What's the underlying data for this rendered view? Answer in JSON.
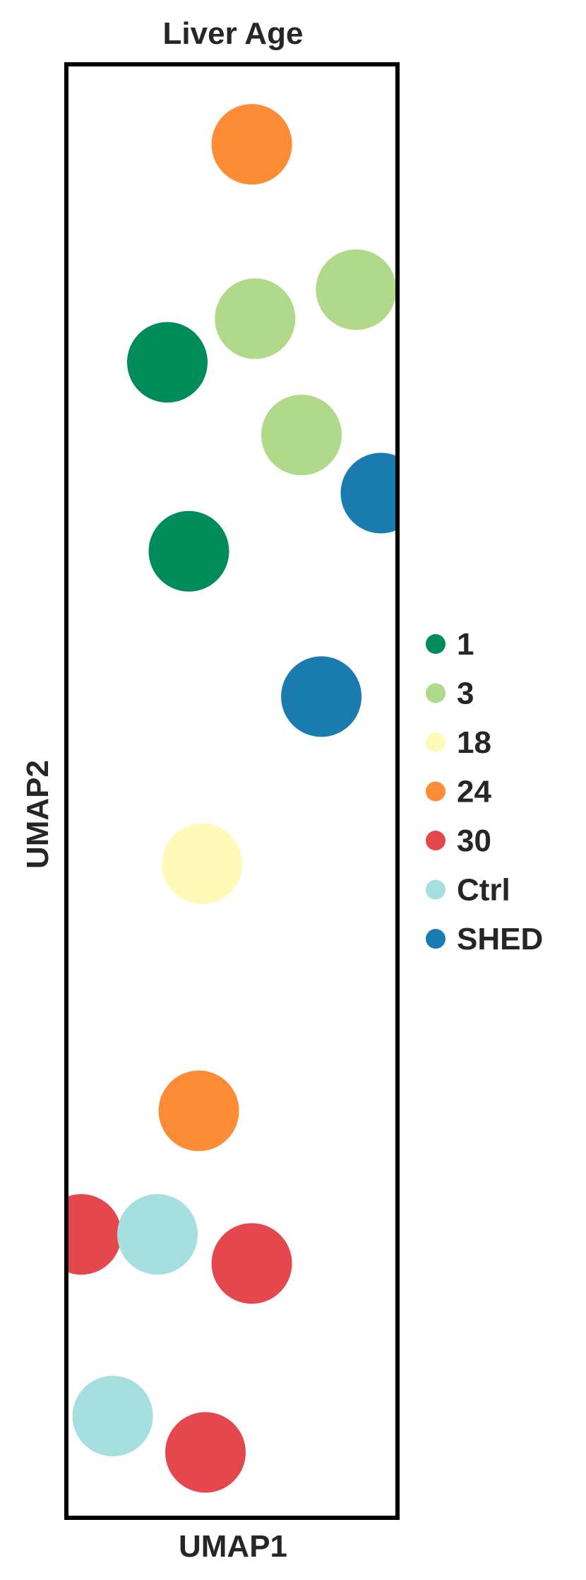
{
  "chart_data": {
    "type": "scatter",
    "title": "Liver Age",
    "xlabel": "UMAP1",
    "ylabel": "UMAP2",
    "xlim": [
      0,
      100
    ],
    "ylim": [
      0,
      100
    ],
    "grid": false,
    "ticks": false,
    "legend_position": "right",
    "series": [
      {
        "name": "1",
        "color": "#008B5A",
        "points": [
          [
            30.5,
            79.5
          ],
          [
            37,
            66.5
          ]
        ]
      },
      {
        "name": "3",
        "color": "#B1D98A",
        "points": [
          [
            57,
            82.5
          ],
          [
            87.5,
            84.5
          ],
          [
            71,
            74.5
          ]
        ]
      },
      {
        "name": "18",
        "color": "#FFFAB7",
        "points": [
          [
            41,
            45
          ]
        ]
      },
      {
        "name": "24",
        "color": "#FE8C36",
        "points": [
          [
            56,
            94.5
          ],
          [
            40,
            28
          ]
        ]
      },
      {
        "name": "30",
        "color": "#E5484C",
        "points": [
          [
            4.5,
            19.5
          ],
          [
            56,
            17.5
          ],
          [
            42,
            4.5
          ]
        ]
      },
      {
        "name": "Ctrl",
        "color": "#A6DFDF",
        "points": [
          [
            27.5,
            19.5
          ],
          [
            14,
            7
          ]
        ]
      },
      {
        "name": "SHED",
        "color": "#1A7BB1",
        "points": [
          [
            95,
            70.5
          ],
          [
            77,
            56.5
          ]
        ]
      }
    ]
  }
}
